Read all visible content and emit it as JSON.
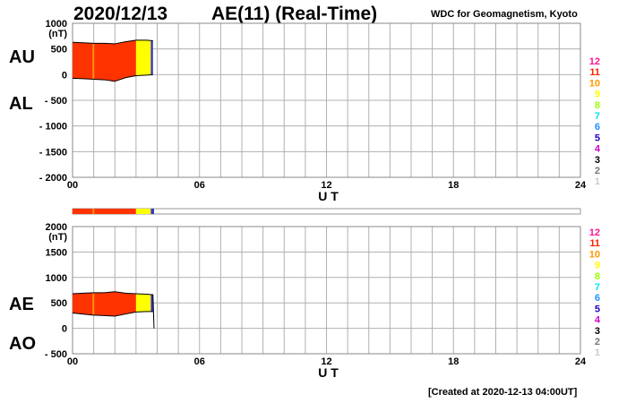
{
  "header": {
    "date": "2020/12/13",
    "title": "AE(11) (Real-Time)",
    "org": "WDC for Geomagnetism, Kyoto"
  },
  "footer": "[Created at 2020-12-13 04:00UT]",
  "colors": {
    "fill_red": "#ff3300",
    "fill_orange": "#ff9900",
    "fill_yellow": "#ffff00",
    "fill_blue": "#3333cc",
    "grid": "#b0b0b0",
    "line": "#000000"
  },
  "legend_levels": [
    {
      "label": "12",
      "color": "#ff1493"
    },
    {
      "label": "11",
      "color": "#ff2200"
    },
    {
      "label": "10",
      "color": "#ff9900"
    },
    {
      "label": "9",
      "color": "#ffff00"
    },
    {
      "label": "8",
      "color": "#99ff00"
    },
    {
      "label": "7",
      "color": "#00e5ee"
    },
    {
      "label": "6",
      "color": "#1e90ff"
    },
    {
      "label": "5",
      "color": "#2200cc"
    },
    {
      "label": "4",
      "color": "#cc00cc"
    },
    {
      "label": "3",
      "color": "#000000"
    },
    {
      "label": "2",
      "color": "#777777"
    },
    {
      "label": "1",
      "color": "#cccccc"
    }
  ],
  "chart_data": [
    {
      "type": "area",
      "id": "au_al",
      "labels_left": [
        "AU",
        "AL"
      ],
      "ylabel": "(nT)",
      "ylim": [
        -2000,
        1000
      ],
      "y_ticks": [
        {
          "value": 1000,
          "label": "1000"
        },
        {
          "value": 500,
          "label": "500"
        },
        {
          "value": 0,
          "label": "0"
        },
        {
          "value": -500,
          "label": "- 500"
        },
        {
          "value": -1000,
          "label": "- 1000"
        },
        {
          "value": -1500,
          "label": "- 1500"
        },
        {
          "value": -2000,
          "label": "- 2000"
        }
      ],
      "xlabel": "U T",
      "xlim": [
        0,
        24
      ],
      "x_ticks": [
        "00",
        "06",
        "12",
        "18",
        "24"
      ],
      "grid": true,
      "series": [
        {
          "name": "AU",
          "x": [
            0,
            0.5,
            1,
            1.5,
            2,
            2.5,
            3,
            3.5,
            3.8
          ],
          "values": [
            630,
            620,
            610,
            610,
            600,
            640,
            670,
            670,
            660
          ]
        },
        {
          "name": "AL",
          "x": [
            0,
            0.5,
            1,
            1.5,
            2,
            2.5,
            3,
            3.5,
            3.8
          ],
          "values": [
            -70,
            -80,
            -90,
            -100,
            -130,
            -60,
            -20,
            -10,
            0
          ]
        }
      ],
      "color_bands": [
        {
          "from": 0,
          "to": 0.95,
          "color": "#ff3300"
        },
        {
          "from": 0.95,
          "to": 1.02,
          "color": "#ff9900"
        },
        {
          "from": 1.02,
          "to": 3.0,
          "color": "#ff3300"
        },
        {
          "from": 3.0,
          "to": 3.7,
          "color": "#ffff00"
        },
        {
          "from": 3.7,
          "to": 3.85,
          "color": "#3333cc"
        }
      ]
    },
    {
      "type": "area",
      "id": "ae_ao",
      "labels_left": [
        "AE",
        "AO"
      ],
      "ylabel": "(nT)",
      "ylim": [
        -500,
        2000
      ],
      "y_ticks": [
        {
          "value": 2000,
          "label": "2000"
        },
        {
          "value": 1500,
          "label": "1500"
        },
        {
          "value": 1000,
          "label": "1000"
        },
        {
          "value": 500,
          "label": "500"
        },
        {
          "value": 0,
          "label": "0"
        },
        {
          "value": -500,
          "label": "- 500"
        }
      ],
      "xlabel": "U T",
      "xlim": [
        0,
        24
      ],
      "x_ticks": [
        "00",
        "06",
        "12",
        "18",
        "24"
      ],
      "grid": true,
      "series": [
        {
          "name": "AE",
          "x": [
            0,
            0.5,
            1,
            1.5,
            2,
            2.5,
            3,
            3.5,
            3.8,
            3.85
          ],
          "values": [
            680,
            690,
            700,
            700,
            720,
            690,
            680,
            670,
            660,
            0
          ]
        },
        {
          "name": "AO",
          "x": [
            0,
            0.5,
            1,
            1.5,
            2,
            2.5,
            3,
            3.5,
            3.8
          ],
          "values": [
            300,
            280,
            260,
            250,
            240,
            280,
            320,
            330,
            330
          ]
        }
      ],
      "color_bands": [
        {
          "from": 0,
          "to": 0.95,
          "color": "#ff3300"
        },
        {
          "from": 0.95,
          "to": 1.02,
          "color": "#ff9900"
        },
        {
          "from": 1.02,
          "to": 3.0,
          "color": "#ff3300"
        },
        {
          "from": 3.0,
          "to": 3.7,
          "color": "#ffff00"
        },
        {
          "from": 3.7,
          "to": 3.85,
          "color": "#3333cc"
        }
      ]
    }
  ]
}
